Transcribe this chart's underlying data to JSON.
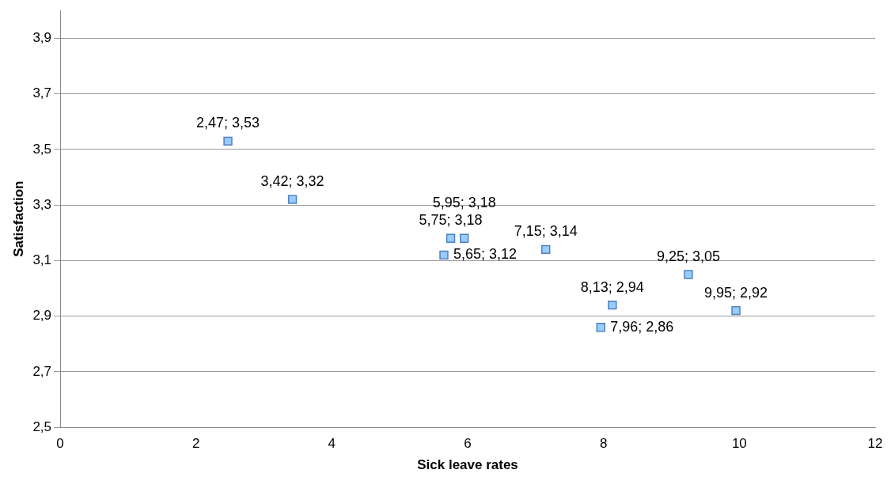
{
  "chart_data": {
    "type": "scatter",
    "xlabel": "Sick leave rates",
    "ylabel": "Satisfaction",
    "x": [
      2.47,
      3.42,
      5.65,
      5.75,
      5.95,
      7.15,
      7.96,
      8.13,
      9.25,
      9.95
    ],
    "values": [
      3.53,
      3.32,
      3.12,
      3.18,
      3.18,
      3.14,
      2.86,
      2.94,
      3.05,
      2.92
    ],
    "value_labels": [
      "2,47; 3,53",
      "3,42; 3,32",
      "5,65; 3,12",
      "5,75; 3,18",
      "5,95; 3,18",
      "7,15; 3,14",
      "7,96; 2,86",
      "8,13; 2,94",
      "9,25; 3,05",
      "9,95; 2,92"
    ],
    "color": "#99ccff",
    "xlim": [
      0,
      12
    ],
    "xticks": [
      0,
      2,
      4,
      6,
      8,
      10,
      12
    ],
    "ylim": [
      2.5,
      4.0
    ],
    "yticks": [
      {
        "value": 2.5,
        "label": "2,5"
      },
      {
        "value": 2.7,
        "label": "2,7"
      },
      {
        "value": 2.9,
        "label": "2,9"
      },
      {
        "value": 3.1,
        "label": "3,1"
      },
      {
        "value": 3.3,
        "label": "3,3"
      },
      {
        "value": 3.5,
        "label": "3,5"
      },
      {
        "value": 3.7,
        "label": "3,7"
      },
      {
        "value": 3.9,
        "label": "3,9"
      }
    ],
    "grid": "y",
    "marker": "square",
    "legend": false
  }
}
